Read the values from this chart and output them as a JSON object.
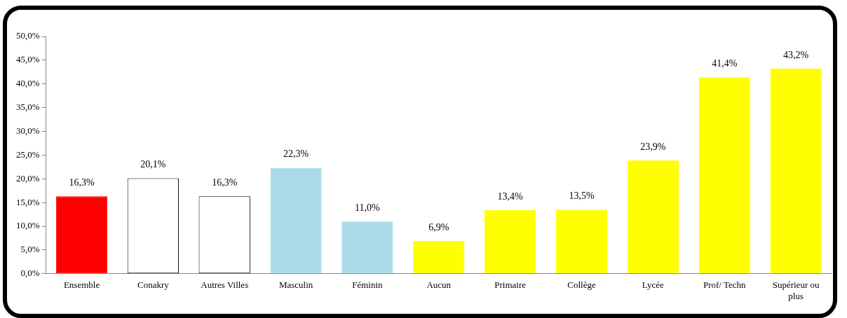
{
  "chart_data": {
    "type": "bar",
    "categories": [
      "Ensemble",
      "Conakry",
      "Autres Villes",
      "Masculin",
      "Féminin",
      "Aucun",
      "Primaire",
      "Collège",
      "Lycée",
      "Prof/ Techn",
      "Supérieur ou plus"
    ],
    "values": [
      16.3,
      20.1,
      16.3,
      22.3,
      11.0,
      6.9,
      13.4,
      13.5,
      23.9,
      41.4,
      43.2
    ],
    "colors": [
      "#ff0000",
      "#ffffff",
      "#ffffff",
      "#a9dbe8",
      "#a9dbe8",
      "#ffff00",
      "#ffff00",
      "#ffff00",
      "#ffff00",
      "#ffff00",
      "#ffff00"
    ],
    "value_labels": [
      "16,3%",
      "20,1%",
      "16,3%",
      "22,3%",
      "11,0%",
      "6,9%",
      "13,4%",
      "13,5%",
      "23,9%",
      "41,4%",
      "43,2%"
    ],
    "ylim": [
      0,
      50
    ],
    "yticks": [
      {
        "value": 0,
        "label": "0,0%"
      },
      {
        "value": 5,
        "label": "5,0%"
      },
      {
        "value": 10,
        "label": "10,0%"
      },
      {
        "value": 15,
        "label": "15,0%"
      },
      {
        "value": 20,
        "label": "20,0%"
      },
      {
        "value": 25,
        "label": "25,0%"
      },
      {
        "value": 30,
        "label": "30,0%"
      },
      {
        "value": 35,
        "label": "35,0%"
      },
      {
        "value": 40,
        "label": "40,0%"
      },
      {
        "value": 45,
        "label": "45,0%"
      },
      {
        "value": 50,
        "label": "50,0%"
      }
    ],
    "grid": false,
    "legend": false
  }
}
